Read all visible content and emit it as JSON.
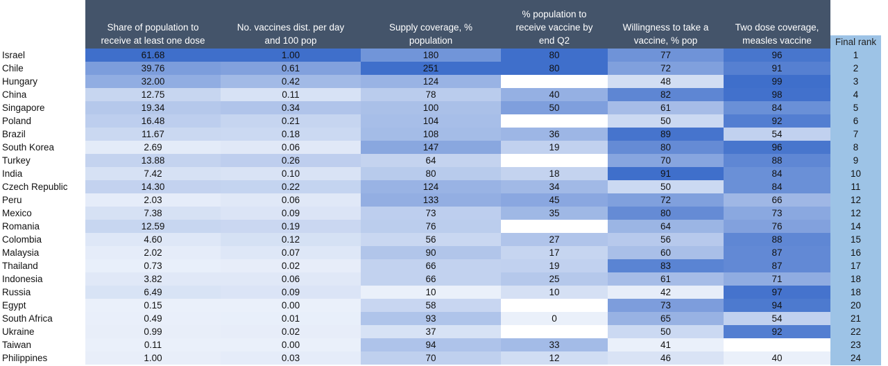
{
  "chart_data": {
    "type": "table",
    "title": "",
    "row_header": "",
    "columns": [
      {
        "key": "first_dose",
        "label": "Share of population to receive at least one dose",
        "header_lines": [
          "Share of population to",
          "receive at least one dose"
        ],
        "decimals": 2
      },
      {
        "key": "dist_per_day",
        "label": "No. vaccines dist. per day and 100 pop",
        "header_lines": [
          "No. vaccines dist. per day",
          "and 100 pop"
        ],
        "decimals": 2
      },
      {
        "key": "supply",
        "label": "Supply coverage, % population",
        "header_lines": [
          "Supply coverage, %",
          "population"
        ],
        "decimals": 0
      },
      {
        "key": "by_q2",
        "label": "% population to receive vaccine by end Q2",
        "header_lines": [
          "% population to",
          "receive vaccine by",
          "end Q2"
        ],
        "decimals": 0
      },
      {
        "key": "willingness",
        "label": "Willingness to take a vaccine, % pop",
        "header_lines": [
          "Willingness to take a",
          "vaccine, % pop"
        ],
        "decimals": 0
      },
      {
        "key": "measles",
        "label": "Two dose coverage, measles vaccine",
        "header_lines": [
          "Two dose coverage,",
          "measles vaccine"
        ],
        "decimals": 0
      }
    ],
    "rank_header": "Final rank",
    "rows": [
      {
        "country": "Israel",
        "values": [
          61.68,
          1.0,
          180,
          80,
          77,
          96
        ],
        "rank": 1
      },
      {
        "country": "Chile",
        "values": [
          39.76,
          0.61,
          251,
          80,
          72,
          91
        ],
        "rank": 2
      },
      {
        "country": "Hungary",
        "values": [
          32.0,
          0.42,
          124,
          null,
          48,
          99
        ],
        "rank": 3
      },
      {
        "country": "China",
        "values": [
          12.75,
          0.11,
          78,
          40,
          82,
          98
        ],
        "rank": 4
      },
      {
        "country": "Singapore",
        "values": [
          19.34,
          0.34,
          100,
          50,
          61,
          84
        ],
        "rank": 5
      },
      {
        "country": "Poland",
        "values": [
          16.48,
          0.21,
          104,
          null,
          50,
          92
        ],
        "rank": 6
      },
      {
        "country": "Brazil",
        "values": [
          11.67,
          0.18,
          108,
          36,
          89,
          54
        ],
        "rank": 7
      },
      {
        "country": "South Korea",
        "values": [
          2.69,
          0.06,
          147,
          19,
          80,
          96
        ],
        "rank": 8
      },
      {
        "country": "Turkey",
        "values": [
          13.88,
          0.26,
          64,
          null,
          70,
          88
        ],
        "rank": 9
      },
      {
        "country": "India",
        "values": [
          7.42,
          0.1,
          80,
          18,
          91,
          84
        ],
        "rank": 10
      },
      {
        "country": "Czech Republic",
        "values": [
          14.3,
          0.22,
          124,
          34,
          50,
          84
        ],
        "rank": 11
      },
      {
        "country": "Peru",
        "values": [
          2.03,
          0.06,
          133,
          45,
          72,
          66
        ],
        "rank": 12
      },
      {
        "country": "Mexico",
        "values": [
          7.38,
          0.09,
          73,
          35,
          80,
          73
        ],
        "rank": 12
      },
      {
        "country": "Romania",
        "values": [
          12.59,
          0.19,
          76,
          null,
          64,
          76
        ],
        "rank": 14
      },
      {
        "country": "Colombia",
        "values": [
          4.6,
          0.12,
          56,
          27,
          56,
          88
        ],
        "rank": 15
      },
      {
        "country": "Malaysia",
        "values": [
          2.02,
          0.07,
          90,
          17,
          60,
          87
        ],
        "rank": 16
      },
      {
        "country": "Thailand",
        "values": [
          0.73,
          0.02,
          66,
          19,
          83,
          87
        ],
        "rank": 17
      },
      {
        "country": "Indonesia",
        "values": [
          3.82,
          0.06,
          66,
          25,
          61,
          71
        ],
        "rank": 18
      },
      {
        "country": "Russia",
        "values": [
          6.49,
          0.09,
          10,
          10,
          42,
          97
        ],
        "rank": 18
      },
      {
        "country": "Egypt",
        "values": [
          0.15,
          0.0,
          58,
          null,
          73,
          94
        ],
        "rank": 20
      },
      {
        "country": "South Africa",
        "values": [
          0.49,
          0.01,
          93,
          0,
          65,
          54
        ],
        "rank": 21
      },
      {
        "country": "Ukraine",
        "values": [
          0.99,
          0.02,
          37,
          null,
          50,
          92
        ],
        "rank": 22
      },
      {
        "country": "Taiwan",
        "values": [
          0.11,
          0.0,
          94,
          33,
          41,
          null
        ],
        "rank": 23
      },
      {
        "country": "Philippines",
        "values": [
          1.0,
          0.03,
          70,
          12,
          46,
          40
        ],
        "rank": 24
      }
    ]
  },
  "colors": {
    "header_bg": "#44546a",
    "header_text": "#ffffff",
    "heat_low": "#eaf0fa",
    "heat_high": "#3f6fcb",
    "rank_bg": "#9dc3e6",
    "missing": "#ffffff"
  }
}
